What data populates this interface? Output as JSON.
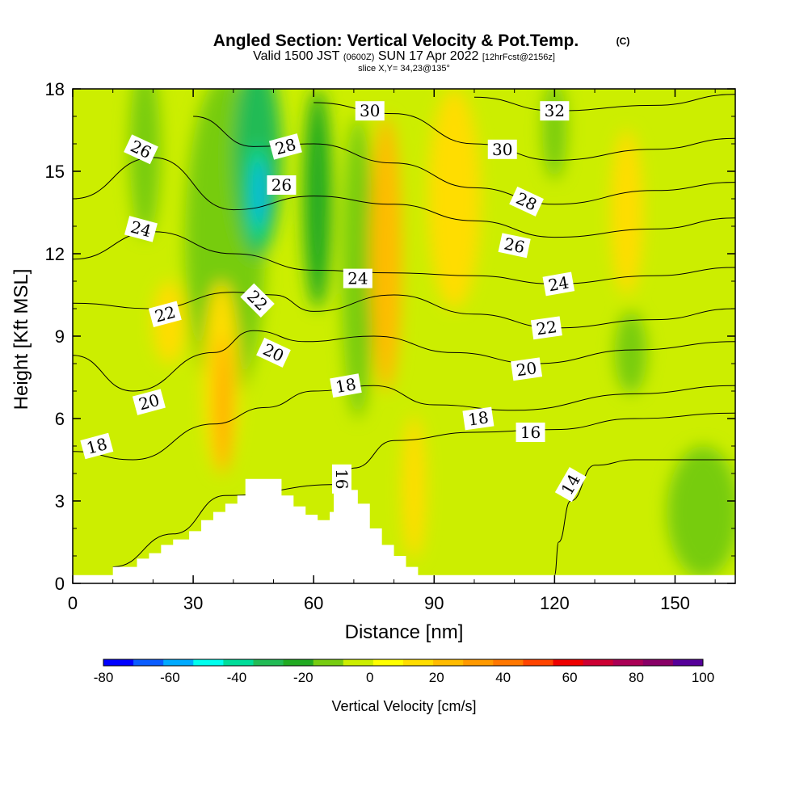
{
  "chart_data": {
    "type": "heatmap",
    "title": "Angled Section: Vertical Velocity & Pot.Temp.",
    "title_unit": "(C)",
    "subtitle_parts": [
      "Valid 1500 JST",
      "(0600Z)",
      "SUN 17 Apr 2022",
      "[12hrFcst@2156z]"
    ],
    "slice_info": "slice X,Y= 34,23@135°",
    "xlabel": "Distance [nm]",
    "ylabel": "Height [Kft MSL]",
    "xlim": [
      0,
      165
    ],
    "ylim": [
      0,
      18
    ],
    "x_ticks": [
      "0",
      "30",
      "60",
      "90",
      "120",
      "150"
    ],
    "x_tick_values": [
      0,
      30,
      60,
      90,
      120,
      150
    ],
    "y_ticks": [
      "0",
      "3",
      "6",
      "9",
      "12",
      "15",
      "18"
    ],
    "y_tick_values": [
      0,
      3,
      6,
      9,
      12,
      15,
      18
    ],
    "colorbar": {
      "label": "Vertical Velocity [cm/s]",
      "ticks": [
        "-80",
        "-60",
        "-40",
        "-20",
        "0",
        "20",
        "40",
        "60",
        "80",
        "100"
      ],
      "tick_values": [
        -80,
        -60,
        -40,
        -20,
        0,
        20,
        40,
        60,
        80,
        100
      ],
      "range": [
        -80,
        100
      ],
      "colors": [
        "#0000ff",
        "#0a5cff",
        "#00aaff",
        "#00ffee",
        "#00dd99",
        "#22bb55",
        "#22aa22",
        "#77cc11",
        "#ccee00",
        "#ffff00",
        "#ffdd00",
        "#ffbb00",
        "#ff9900",
        "#ff7700",
        "#ff4400",
        "#ee0000",
        "#cc0033",
        "#aa0055",
        "#880066",
        "#550099"
      ]
    },
    "terrain": [
      [
        0,
        0.3
      ],
      [
        10,
        0.3
      ],
      [
        10,
        0.6
      ],
      [
        16,
        0.6
      ],
      [
        16,
        0.9
      ],
      [
        19,
        0.9
      ],
      [
        19,
        1.1
      ],
      [
        22,
        1.1
      ],
      [
        22,
        1.4
      ],
      [
        25,
        1.4
      ],
      [
        25,
        1.6
      ],
      [
        29,
        1.6
      ],
      [
        29,
        1.9
      ],
      [
        32,
        1.9
      ],
      [
        32,
        2.3
      ],
      [
        35,
        2.3
      ],
      [
        35,
        2.6
      ],
      [
        38,
        2.6
      ],
      [
        38,
        2.9
      ],
      [
        41,
        2.9
      ],
      [
        41,
        3.2
      ],
      [
        43,
        3.2
      ],
      [
        43,
        3.8
      ],
      [
        52,
        3.8
      ],
      [
        52,
        3.2
      ],
      [
        55,
        3.2
      ],
      [
        55,
        2.8
      ],
      [
        58,
        2.8
      ],
      [
        58,
        2.5
      ],
      [
        61,
        2.5
      ],
      [
        61,
        2.3
      ],
      [
        64,
        2.3
      ],
      [
        64,
        2.6
      ],
      [
        65,
        2.6
      ],
      [
        65,
        4.1
      ],
      [
        69,
        4.1
      ],
      [
        69,
        3.4
      ],
      [
        71,
        3.4
      ],
      [
        71,
        2.9
      ],
      [
        74,
        2.9
      ],
      [
        74,
        2.0
      ],
      [
        77,
        2.0
      ],
      [
        77,
        1.4
      ],
      [
        80,
        1.4
      ],
      [
        80,
        1.0
      ],
      [
        83,
        1.0
      ],
      [
        83,
        0.6
      ],
      [
        86,
        0.6
      ],
      [
        86,
        0.3
      ],
      [
        165,
        0.3
      ]
    ],
    "vertical_velocity_cells": [
      {
        "x": [
          28,
          49
        ],
        "y": [
          3,
          16
        ],
        "value": -14,
        "cx": 38,
        "cy": 12.5,
        "rx": 10,
        "ry": 6
      },
      {
        "x": [
          39,
          58
        ],
        "y": [
          9,
          19
        ],
        "value": -28,
        "cx": 46,
        "cy": 15.5,
        "rx": 6,
        "ry": 3.6
      },
      {
        "x": [
          42,
          52
        ],
        "y": [
          12.5,
          16
        ],
        "value": -40,
        "cx": 46,
        "cy": 14.2,
        "rx": 2.3,
        "ry": 1.8
      },
      {
        "x": [
          44,
          49
        ],
        "y": [
          13,
          15.5
        ],
        "value": -55,
        "cx": 46.5,
        "cy": 14.2,
        "rx": 1.2,
        "ry": 1.2
      },
      {
        "x": [
          58,
          65
        ],
        "y": [
          10,
          18
        ],
        "value": -18,
        "cx": 61,
        "cy": 14,
        "rx": 3.5,
        "ry": 4
      },
      {
        "x": [
          14,
          22
        ],
        "y": [
          13,
          18
        ],
        "value": -15,
        "cx": 18,
        "cy": 15.8,
        "rx": 3.8,
        "ry": 3.2
      },
      {
        "x": [
          68,
          78
        ],
        "y": [
          9,
          15
        ],
        "value": -16,
        "cx": 71,
        "cy": 11.5,
        "rx": 4,
        "ry": 5.5
      },
      {
        "x": [
          115,
          125
        ],
        "y": [
          15,
          18
        ],
        "value": -12,
        "cx": 120,
        "cy": 16.5,
        "rx": 3,
        "ry": 1.8
      },
      {
        "x": [
          133,
          146
        ],
        "y": [
          6.5,
          10
        ],
        "value": -16,
        "cx": 139,
        "cy": 8.4,
        "rx": 4,
        "ry": 1.5
      },
      {
        "x": [
          147,
          165
        ],
        "y": [
          0.3,
          5
        ],
        "value": -10,
        "cx": 157,
        "cy": 2.6,
        "rx": 9,
        "ry": 2.4
      },
      {
        "x": [
          30,
          46
        ],
        "y": [
          4,
          10
        ],
        "value": 15,
        "cx": 37,
        "cy": 7.5,
        "rx": 4.5,
        "ry": 3.5
      },
      {
        "x": [
          35,
          40
        ],
        "y": [
          5,
          9
        ],
        "value": 32,
        "cx": 37.5,
        "cy": 6.5,
        "rx": 1.4,
        "ry": 2.5
      },
      {
        "x": [
          73,
          85
        ],
        "y": [
          7,
          16
        ],
        "value": 20,
        "cx": 78,
        "cy": 12,
        "rx": 4,
        "ry": 5
      },
      {
        "x": [
          86,
          104
        ],
        "y": [
          11,
          18
        ],
        "value": 14,
        "cx": 95,
        "cy": 14,
        "rx": 6.5,
        "ry": 4
      },
      {
        "x": [
          130,
          142
        ],
        "y": [
          11,
          18
        ],
        "value": 15,
        "cx": 138,
        "cy": 13.5,
        "rx": 4,
        "ry": 3
      },
      {
        "x": [
          78,
          92
        ],
        "y": [
          0.5,
          6
        ],
        "value": 18,
        "cx": 85,
        "cy": 3.5,
        "rx": 3,
        "ry": 2.6
      },
      {
        "x": [
          18,
          32
        ],
        "y": [
          8,
          11
        ],
        "value": 14,
        "cx": 24,
        "cy": 9.5,
        "rx": 4,
        "ry": 1.5
      }
    ],
    "theta_contours": [
      {
        "level": 14,
        "points": [
          [
            120,
            0.3
          ],
          [
            121,
            1.5
          ],
          [
            124,
            3.0
          ],
          [
            130,
            4.3
          ],
          [
            140,
            4.5
          ],
          [
            165,
            4.5
          ]
        ]
      },
      {
        "level": 16,
        "points": [
          [
            10,
            0.6
          ],
          [
            25,
            1.8
          ],
          [
            38,
            3.2
          ],
          [
            66,
            3.6
          ],
          [
            70,
            4.2
          ],
          [
            80,
            5.2
          ],
          [
            100,
            5.5
          ],
          [
            120,
            5.6
          ],
          [
            140,
            6.0
          ],
          [
            165,
            6.2
          ]
        ]
      },
      {
        "level": 18,
        "points": [
          [
            0,
            4.8
          ],
          [
            15,
            4.5
          ],
          [
            35,
            5.8
          ],
          [
            48,
            6.4
          ],
          [
            60,
            7.0
          ],
          [
            75,
            7.2
          ],
          [
            90,
            6.5
          ],
          [
            110,
            6.3
          ],
          [
            140,
            6.9
          ],
          [
            165,
            7.2
          ]
        ]
      },
      {
        "level": 20,
        "points": [
          [
            0,
            8.3
          ],
          [
            15,
            7.0
          ],
          [
            35,
            8.4
          ],
          [
            45,
            9.2
          ],
          [
            58,
            8.8
          ],
          [
            75,
            9.0
          ],
          [
            95,
            8.4
          ],
          [
            115,
            8.0
          ],
          [
            140,
            8.5
          ],
          [
            165,
            8.8
          ]
        ]
      },
      {
        "level": 22,
        "points": [
          [
            0,
            10.2
          ],
          [
            20,
            10.0
          ],
          [
            40,
            10.6
          ],
          [
            50,
            10.5
          ],
          [
            60,
            9.9
          ],
          [
            80,
            10.5
          ],
          [
            100,
            9.8
          ],
          [
            120,
            9.3
          ],
          [
            145,
            9.6
          ],
          [
            165,
            10.0
          ]
        ]
      },
      {
        "level": 24,
        "points": [
          [
            0,
            11.8
          ],
          [
            20,
            12.8
          ],
          [
            40,
            12.0
          ],
          [
            60,
            11.4
          ],
          [
            80,
            11.3
          ],
          [
            100,
            11.2
          ],
          [
            120,
            10.9
          ],
          [
            145,
            11.2
          ],
          [
            165,
            11.5
          ]
        ]
      },
      {
        "level": 26,
        "points": [
          [
            0,
            14.0
          ],
          [
            20,
            15.5
          ],
          [
            40,
            13.6
          ],
          [
            60,
            14.1
          ],
          [
            80,
            13.8
          ],
          [
            100,
            13.2
          ],
          [
            120,
            12.6
          ],
          [
            145,
            12.9
          ],
          [
            165,
            13.3
          ]
        ]
      },
      {
        "level": 28,
        "points": [
          [
            30,
            17.0
          ],
          [
            45,
            15.9
          ],
          [
            60,
            16.0
          ],
          [
            80,
            15.3
          ],
          [
            100,
            14.4
          ],
          [
            120,
            13.8
          ],
          [
            145,
            14.3
          ],
          [
            165,
            14.6
          ]
        ]
      },
      {
        "level": 30,
        "points": [
          [
            60,
            17.5
          ],
          [
            80,
            17.1
          ],
          [
            100,
            16.0
          ],
          [
            120,
            15.4
          ],
          [
            145,
            15.8
          ],
          [
            165,
            16.2
          ]
        ]
      },
      {
        "level": 32,
        "points": [
          [
            100,
            17.7
          ],
          [
            120,
            17.2
          ],
          [
            145,
            17.4
          ],
          [
            165,
            17.8
          ]
        ]
      }
    ],
    "contour_labels": [
      {
        "text": "30",
        "x": 74,
        "y": 17.2,
        "angle": 0
      },
      {
        "text": "32",
        "x": 120,
        "y": 17.2,
        "angle": 0
      },
      {
        "text": "28",
        "x": 53,
        "y": 15.9,
        "angle": -15
      },
      {
        "text": "30",
        "x": 107,
        "y": 15.8,
        "angle": 0
      },
      {
        "text": "26",
        "x": 17,
        "y": 15.8,
        "angle": 25
      },
      {
        "text": "26",
        "x": 52,
        "y": 14.5,
        "angle": 0
      },
      {
        "text": "28",
        "x": 113,
        "y": 13.9,
        "angle": 25
      },
      {
        "text": "24",
        "x": 17,
        "y": 12.9,
        "angle": 15
      },
      {
        "text": "26",
        "x": 110,
        "y": 12.3,
        "angle": 12
      },
      {
        "text": "24",
        "x": 71,
        "y": 11.1,
        "angle": 0
      },
      {
        "text": "24",
        "x": 121,
        "y": 10.9,
        "angle": -10
      },
      {
        "text": "22",
        "x": 46,
        "y": 10.3,
        "angle": 45
      },
      {
        "text": "22",
        "x": 23,
        "y": 9.8,
        "angle": -15
      },
      {
        "text": "22",
        "x": 118,
        "y": 9.3,
        "angle": -8
      },
      {
        "text": "20",
        "x": 50,
        "y": 8.4,
        "angle": 25
      },
      {
        "text": "20",
        "x": 113,
        "y": 7.8,
        "angle": -8
      },
      {
        "text": "18",
        "x": 68,
        "y": 7.2,
        "angle": -10
      },
      {
        "text": "20",
        "x": 19,
        "y": 6.6,
        "angle": -15
      },
      {
        "text": "18",
        "x": 101,
        "y": 6.0,
        "angle": -8
      },
      {
        "text": "16",
        "x": 114,
        "y": 5.5,
        "angle": 0
      },
      {
        "text": "18",
        "x": 6,
        "y": 5.0,
        "angle": -15
      },
      {
        "text": "16",
        "x": 67,
        "y": 3.8,
        "angle": 90
      },
      {
        "text": "14",
        "x": 124,
        "y": 3.6,
        "angle": -60
      }
    ]
  }
}
